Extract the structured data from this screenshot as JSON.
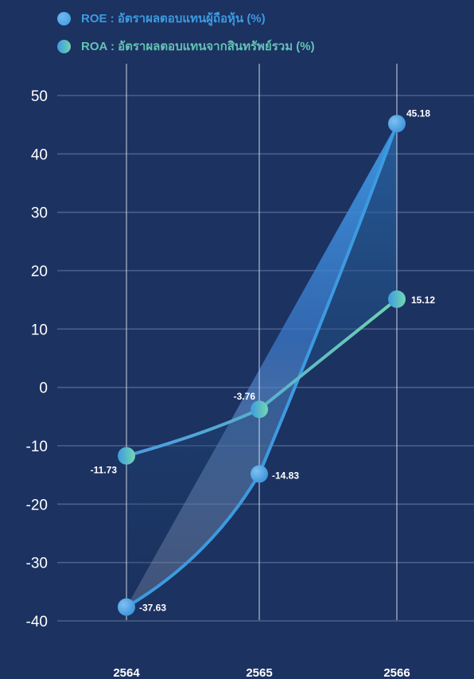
{
  "legend": {
    "roe_label": "ROE : อัตราผลตอบแทนผู้ถือหุ้น (%)",
    "roa_label": "ROA : อัตราผลตอบแทนจากสินทรัพย์รวม (%)"
  },
  "colors": {
    "background": "#1c3261",
    "roe": "#3d9ae0",
    "roa": "#63c3b4",
    "grid": "#5d6f98",
    "text": "#ffffff"
  },
  "chart_data": {
    "type": "area",
    "categories": [
      "2564",
      "2565",
      "2566"
    ],
    "series": [
      {
        "name": "ROE : อัตราผลตอบแทนผู้ถือหุ้น (%)",
        "values": [
          -37.63,
          -14.83,
          45.18
        ],
        "labels": [
          "-37.63",
          "-14.83",
          "45.18"
        ]
      },
      {
        "name": "ROA : อัตราผลตอบแทนจากสินทรัพย์รวม (%)",
        "values": [
          -11.73,
          -3.76,
          15.12
        ],
        "labels": [
          "-11.73",
          "-3.76",
          "15.12"
        ]
      }
    ],
    "y_ticks": [
      50,
      40,
      30,
      20,
      10,
      0,
      -10,
      -20,
      -30,
      -40
    ],
    "ylim": [
      -40,
      50
    ],
    "grid": true,
    "legend_position": "top-left"
  }
}
